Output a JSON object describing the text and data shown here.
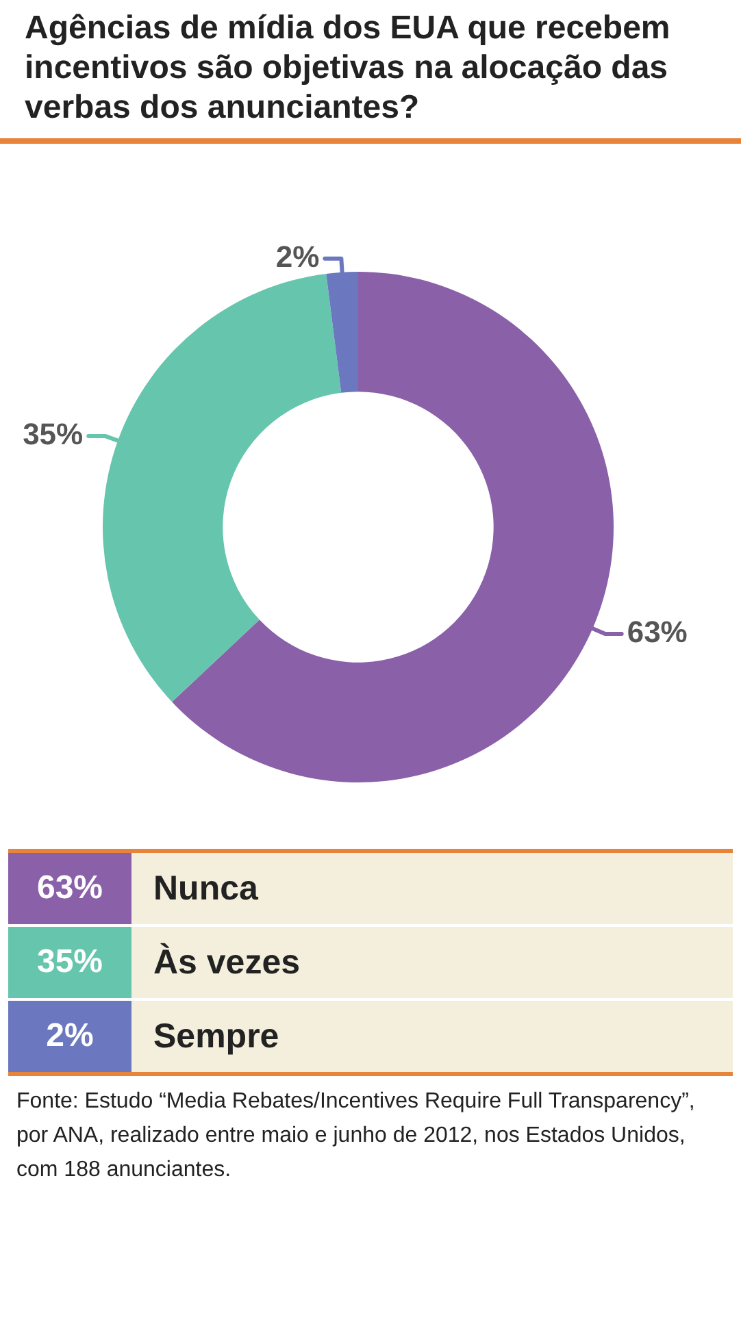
{
  "chart_data": {
    "type": "donut",
    "title": "Agências de mídia dos EUA que recebem incentivos são objetivas na alocação das verbas dos anunciantes?",
    "categories": [
      "Nunca",
      "Às vezes",
      "Sempre"
    ],
    "values": [
      63,
      35,
      2
    ],
    "value_labels": [
      "63%",
      "35%",
      "2%"
    ],
    "colors": [
      "#8a60a8",
      "#66c5ad",
      "#6b78bf"
    ],
    "legend": "bottom",
    "annotations": [
      "Fonte: Estudo “Media Rebates/Incentives Require Full Transparency”, por ANA, realizado entre maio e junho de 2012, nos Estados Unidos, com 188 anunciantes."
    ]
  }
}
